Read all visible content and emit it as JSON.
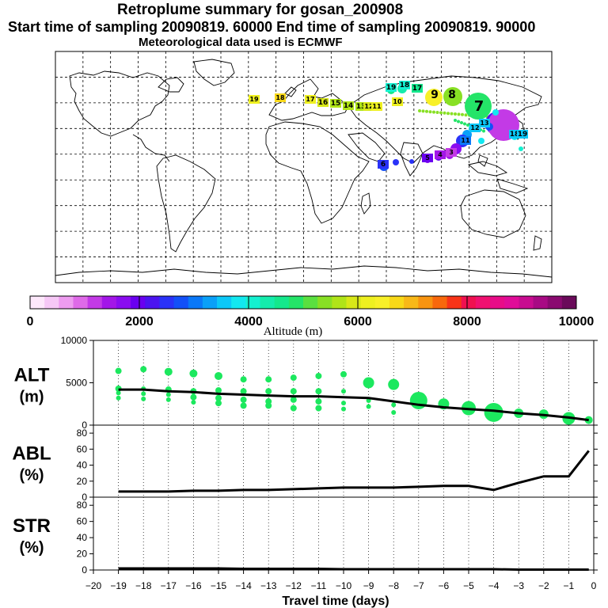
{
  "titles": {
    "line1": "Retroplume summary for gosan_200908",
    "line2": "Start time of sampling 20090819. 60000     End time of sampling 20090819. 90000",
    "line3": "Meteorological data used is ECMWF"
  },
  "colorbar": {
    "ticks": [
      "0",
      "2000",
      "4000",
      "6000",
      "8000",
      "10000"
    ],
    "label": "Altitude (m)",
    "colors": [
      "#fde8fb",
      "#f6c8f6",
      "#ee9cf0",
      "#df6ae8",
      "#c33ae6",
      "#a316e8",
      "#8a0cf0",
      "#6a00f0",
      "#4b14f0",
      "#2a32f8",
      "#1350f8",
      "#0a78f8",
      "#0aa0f8",
      "#0cc8f8",
      "#12e8f0",
      "#14f0d0",
      "#14ecac",
      "#14e88c",
      "#24e468",
      "#5ae040",
      "#88e024",
      "#b0e418",
      "#d8e818",
      "#eef020",
      "#f8f028",
      "#f8d818",
      "#f8b818",
      "#f89410",
      "#f8680c",
      "#f83418",
      "#f01050",
      "#f01070",
      "#e80c88",
      "#e00c98",
      "#c80c90",
      "#a80a84",
      "#8a0a70",
      "#6a0a5a"
    ]
  },
  "map": {
    "labels": [
      {
        "t": "19",
        "c": "#eef020"
      },
      {
        "t": "18",
        "c": "#f8d818"
      },
      {
        "t": "17",
        "c": "#eef020"
      },
      {
        "t": "16",
        "c": "#d8e818"
      },
      {
        "t": "15",
        "c": "#b0e418"
      },
      {
        "t": "14",
        "c": "#b0e418"
      },
      {
        "t": "13",
        "c": "#b0e418"
      },
      {
        "t": "12",
        "c": "#d8e818"
      },
      {
        "t": "11",
        "c": "#eef020"
      },
      {
        "t": "10",
        "c": "#eef020"
      },
      {
        "t": "9",
        "c": "#5ae040"
      },
      {
        "t": "8",
        "c": "#24e468"
      },
      {
        "t": "7",
        "c": "#0aa0f8"
      },
      {
        "t": "19",
        "c": "#14f0d0"
      },
      {
        "t": "18",
        "c": "#14f0d0"
      },
      {
        "t": "17",
        "c": "#14e88c"
      },
      {
        "t": "13",
        "c": "#0cc8f8"
      },
      {
        "t": "12",
        "c": "#0cc8f8"
      },
      {
        "t": "11",
        "c": "#0a78f8"
      },
      {
        "t": "18",
        "c": "#0cc8f8"
      },
      {
        "t": "19",
        "c": "#0cc8f8"
      },
      {
        "t": "6",
        "c": "#2a32f8"
      },
      {
        "t": "5",
        "c": "#6a00f0"
      },
      {
        "t": "4",
        "c": "#a316e8"
      },
      {
        "t": "3",
        "c": "#c33ae6"
      }
    ]
  },
  "chart_data": {
    "type": "line",
    "title": "Retroplume summary for gosan_200908",
    "xlabel": "Travel time (days)",
    "x_ticks": [
      -20,
      -19,
      -18,
      -17,
      -16,
      -15,
      -14,
      -13,
      -12,
      -11,
      -10,
      -9,
      -8,
      -7,
      -6,
      -5,
      -4,
      -3,
      -2,
      -1,
      0
    ],
    "xlim": [
      -20,
      0
    ],
    "panels": [
      {
        "name": "ALT",
        "ylabel_line1": "ALT",
        "ylabel_line2": "(m)",
        "ylim": [
          0,
          10000
        ],
        "y_ticks": [
          "10000",
          "5000",
          "0"
        ],
        "y_tick_values": [
          10000,
          5000,
          0
        ],
        "mean_line": {
          "x": [
            -19,
            -18,
            -17,
            -16,
            -15,
            -14,
            -13,
            -12,
            -11,
            -10,
            -9,
            -8,
            -7,
            -6,
            -5,
            -4,
            -3,
            -2,
            -1,
            -0.2
          ],
          "y": [
            4200,
            4200,
            4000,
            3900,
            3700,
            3600,
            3500,
            3400,
            3400,
            3300,
            3200,
            2800,
            2400,
            2100,
            1900,
            1700,
            1400,
            1200,
            900,
            600
          ]
        },
        "clusters": [
          {
            "x": -19,
            "y": [
              6400,
              4300,
              3800,
              3200
            ],
            "s": [
              4,
              4,
              3,
              3
            ]
          },
          {
            "x": -18,
            "y": [
              6600,
              4300,
              3700,
              3100
            ],
            "s": [
              4,
              3,
              3,
              3
            ]
          },
          {
            "x": -17,
            "y": [
              6300,
              4200,
              3600,
              3000
            ],
            "s": [
              5,
              4,
              3,
              3
            ]
          },
          {
            "x": -16,
            "y": [
              6100,
              4000,
              3300,
              2700
            ],
            "s": [
              5,
              4,
              4,
              3
            ]
          },
          {
            "x": -15,
            "y": [
              5800,
              4100,
              3200,
              2600
            ],
            "s": [
              5,
              4,
              4,
              4
            ]
          },
          {
            "x": -14,
            "y": [
              5400,
              4000,
              3000,
              2300
            ],
            "s": [
              4,
              4,
              4,
              4
            ]
          },
          {
            "x": -13,
            "y": [
              5400,
              4000,
              2800,
              2300
            ],
            "s": [
              4,
              4,
              4,
              4
            ]
          },
          {
            "x": -12,
            "y": [
              5600,
              4000,
              3000,
              2000
            ],
            "s": [
              4,
              4,
              4,
              4
            ]
          },
          {
            "x": -11,
            "y": [
              5800,
              4000,
              2800,
              2000
            ],
            "s": [
              4,
              4,
              4,
              4
            ]
          },
          {
            "x": -10,
            "y": [
              6000,
              4000,
              2600,
              1900
            ],
            "s": [
              4,
              3,
              3,
              3
            ]
          },
          {
            "x": -9,
            "y": [
              5000,
              2900,
              2200
            ],
            "s": [
              7,
              3,
              3
            ]
          },
          {
            "x": -8,
            "y": [
              4800,
              2400,
              1500
            ],
            "s": [
              7,
              3,
              3
            ]
          },
          {
            "x": -7,
            "y": [
              2900
            ],
            "s": [
              11
            ]
          },
          {
            "x": -6,
            "y": [
              2500
            ],
            "s": [
              7
            ]
          },
          {
            "x": -5,
            "y": [
              2000
            ],
            "s": [
              9
            ]
          },
          {
            "x": -4,
            "y": [
              1500
            ],
            "s": [
              12
            ]
          },
          {
            "x": -3,
            "y": [
              1400
            ],
            "s": [
              6
            ]
          },
          {
            "x": -2,
            "y": [
              1300
            ],
            "s": [
              6
            ]
          },
          {
            "x": -1,
            "y": [
              800
            ],
            "s": [
              8
            ]
          },
          {
            "x": -0.2,
            "y": [
              600
            ],
            "s": [
              5
            ]
          }
        ]
      },
      {
        "name": "ABL",
        "ylabel_line1": "ABL",
        "ylabel_line2": "(%)",
        "ylim": [
          0,
          90
        ],
        "y_ticks": [
          "80",
          "60",
          "40",
          "20",
          "0"
        ],
        "y_tick_values": [
          80,
          60,
          40,
          20,
          0
        ],
        "mean_line": {
          "x": [
            -19,
            -18,
            -17,
            -16,
            -15,
            -14,
            -13,
            -12,
            -11,
            -10,
            -9,
            -8,
            -7,
            -6,
            -5,
            -4,
            -3,
            -2,
            -1,
            -0.2
          ],
          "y": [
            7,
            7,
            7,
            8,
            8,
            9,
            9,
            10,
            11,
            12,
            12,
            12,
            13,
            14,
            14,
            9,
            18,
            26,
            26,
            58
          ]
        }
      },
      {
        "name": "STR",
        "ylabel_line1": "STR",
        "ylabel_line2": "(%)",
        "ylim": [
          0,
          90
        ],
        "y_ticks": [
          "80",
          "60",
          "40",
          "20",
          "0"
        ],
        "y_tick_values": [
          80,
          60,
          40,
          20,
          0
        ],
        "mean_line": {
          "x": [
            -19,
            -18,
            -17,
            -16,
            -15,
            -14,
            -13,
            -12,
            -11,
            -10,
            -9,
            -8,
            -7,
            -6,
            -5,
            -4,
            -3,
            -2,
            -1,
            -0.2
          ],
          "y": [
            2,
            2,
            2,
            2,
            2,
            1.5,
            1.5,
            1.5,
            1.5,
            1,
            1,
            1,
            1,
            1,
            1,
            1,
            0.5,
            0.5,
            0.5,
            0.5
          ]
        }
      }
    ]
  }
}
